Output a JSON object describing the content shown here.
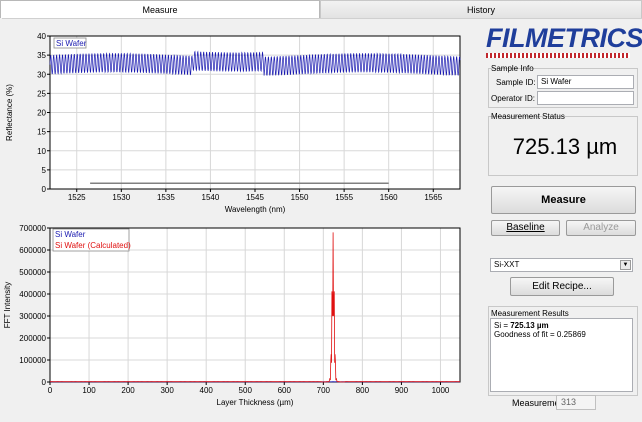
{
  "tabs": [
    {
      "label": "Measure",
      "active": true
    },
    {
      "label": "History",
      "active": false
    }
  ],
  "logo": {
    "text": "FILMETRICS",
    "color": "#1f3e9b",
    "accent": "#c1272d"
  },
  "sample_info": {
    "title": "Sample Info",
    "sample_id_label": "Sample ID:",
    "sample_id_value": "Si Wafer",
    "operator_id_label": "Operator ID:",
    "operator_id_value": ""
  },
  "measurement_status": {
    "title": "Measurement Status",
    "value": "725.13 µm"
  },
  "buttons": {
    "measure": "Measure",
    "baseline": "Baseline",
    "analyze": "Analyze",
    "edit_recipe": "Edit Recipe..."
  },
  "recipe": {
    "selected": "Si-XXT"
  },
  "results": {
    "title": "Measurement Results",
    "line1_prefix": "Si = ",
    "line1_value": "725.13 µm",
    "line2": "Goodness of fit = 0.25869"
  },
  "measurement_count": {
    "label": "Measurement #",
    "value": "313"
  },
  "chart_data": [
    {
      "type": "line",
      "ylabel": "Reflectance (%)",
      "xlabel": "Wavelength (nm)",
      "xlim": [
        1522,
        1568
      ],
      "ylim": [
        0,
        40
      ],
      "x_ticks": [
        1525,
        1530,
        1535,
        1540,
        1545,
        1550,
        1555,
        1560,
        1565
      ],
      "y_ticks": [
        0,
        5,
        10,
        15,
        20,
        25,
        30,
        35,
        40
      ],
      "grid": true,
      "legend": "top-left",
      "series": [
        {
          "name": "Si Wafer",
          "color": "#1a1ab0",
          "oscillation_center": 32.5,
          "oscillation_amplitude": 2.5,
          "fringe_period": 0.33,
          "x_range": [
            1522,
            1568
          ]
        }
      ],
      "baseline_segment": {
        "x": [
          1526.5,
          1560
        ],
        "y": 1.5,
        "color": "#808080"
      }
    },
    {
      "type": "line",
      "ylabel": "FFT Intensity",
      "xlabel": "Layer Thickness (µm)",
      "xlim": [
        0,
        1050
      ],
      "ylim": [
        0,
        700000
      ],
      "x_ticks": [
        0,
        100,
        200,
        300,
        400,
        500,
        600,
        700,
        800,
        900,
        1000
      ],
      "y_ticks": [
        0,
        100000,
        200000,
        300000,
        400000,
        500000,
        600000,
        700000
      ],
      "grid": true,
      "legend": "top-left",
      "series": [
        {
          "name": "Si Wafer",
          "color": "#1a1ab0"
        },
        {
          "name": "Si Wafer (Calculated)",
          "color": "#e01010",
          "peak_x": 725,
          "peak_y": 680000
        }
      ]
    }
  ]
}
